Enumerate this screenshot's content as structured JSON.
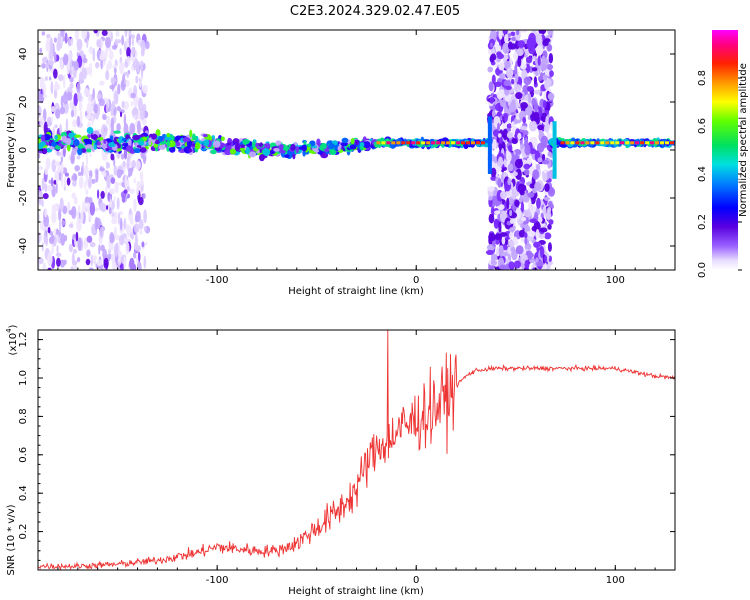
{
  "title": "C2E3.2024.329.02.47.E05",
  "chart_data": [
    {
      "type": "heatmap",
      "name": "spectrogram",
      "xlabel": "Height of straight line (km)",
      "ylabel": "Frequency (Hz)",
      "xlim": [
        -190,
        130
      ],
      "ylim": [
        -50,
        50
      ],
      "xticks": [
        -100,
        0,
        100
      ],
      "yticks": [
        -40,
        -20,
        0,
        20,
        40
      ],
      "colorbar": {
        "label": "Normalized spectral amplitude",
        "range": [
          0.0,
          1.0
        ],
        "ticks": [
          "0.0",
          "0.2",
          "0.4",
          "0.6",
          "0.8"
        ],
        "colormap": "rainbow (white-violet-blue-cyan-green-yellow-red-magenta)"
      },
      "features": {
        "noisy_band_x": [
          -190,
          -135
        ],
        "signal_track_x": [
          -190,
          130
        ],
        "signal_freq_hz": 3,
        "gap_x": [
          37,
          68
        ]
      }
    },
    {
      "type": "line",
      "name": "snr",
      "xlabel": "Height of straight line (km)",
      "ylabel": "SNR (10 * v/v)",
      "exponent_label": "(x10",
      "exponent_sup": "4",
      "exponent_close": ")",
      "xlim": [
        -190,
        130
      ],
      "ylim": [
        0,
        1.25
      ],
      "xticks": [
        -100,
        0,
        100
      ],
      "yticks": [
        "0.2",
        "0.4",
        "0.6",
        "0.8",
        "1.0",
        "1.2"
      ],
      "color": "#ee3333",
      "x": [
        -190,
        -170,
        -150,
        -130,
        -110,
        -100,
        -90,
        -80,
        -70,
        -60,
        -50,
        -40,
        -30,
        -25,
        -20,
        -15,
        -10,
        -5,
        0,
        5,
        10,
        15,
        20,
        25,
        30,
        40,
        60,
        80,
        100,
        110,
        120,
        130
      ],
      "y": [
        0.02,
        0.02,
        0.03,
        0.05,
        0.09,
        0.12,
        0.11,
        0.1,
        0.1,
        0.14,
        0.22,
        0.3,
        0.42,
        0.55,
        0.63,
        0.68,
        0.72,
        0.75,
        0.78,
        0.82,
        0.85,
        0.9,
        0.96,
        1.01,
        1.04,
        1.05,
        1.05,
        1.05,
        1.05,
        1.03,
        1.01,
        1.0
      ]
    }
  ]
}
